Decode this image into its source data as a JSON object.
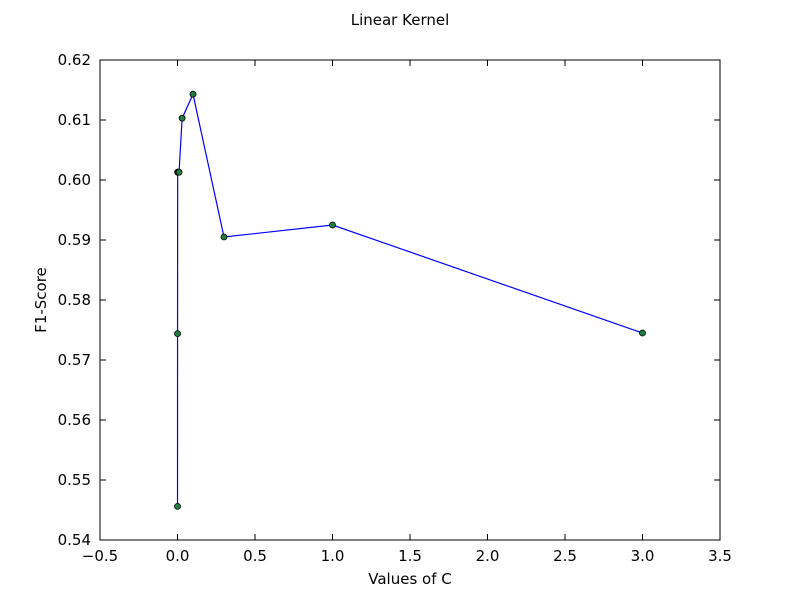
{
  "chart_data": {
    "type": "line",
    "title": "Linear Kernel",
    "xlabel": "Values of C",
    "ylabel": "F1-Score",
    "xlim": [
      -0.5,
      3.5
    ],
    "ylim": [
      0.54,
      0.62
    ],
    "xticks": [
      -0.5,
      0.0,
      0.5,
      1.0,
      1.5,
      2.0,
      2.5,
      3.0,
      3.5
    ],
    "xtick_labels": [
      "−0.5",
      "0.0",
      "0.5",
      "1.0",
      "1.5",
      "2.0",
      "2.5",
      "3.0",
      "3.5"
    ],
    "yticks": [
      0.54,
      0.55,
      0.56,
      0.57,
      0.58,
      0.59,
      0.6,
      0.61,
      0.62
    ],
    "ytick_labels": [
      "0.54",
      "0.55",
      "0.56",
      "0.57",
      "0.58",
      "0.59",
      "0.60",
      "0.61",
      "0.62"
    ],
    "grid": false,
    "line_color": "#0000ff",
    "marker_color": "#1f7f3f",
    "series": [
      {
        "x": [
          0.0001,
          0.0003,
          0.001,
          0.003,
          0.01,
          0.03,
          0.1,
          0.3,
          1.0,
          3.0
        ],
        "y": [
          0.5456,
          0.5744,
          0.6013,
          0.6013,
          0.6013,
          0.6103,
          0.6143,
          0.5905,
          0.5925,
          0.5745
        ]
      }
    ]
  }
}
